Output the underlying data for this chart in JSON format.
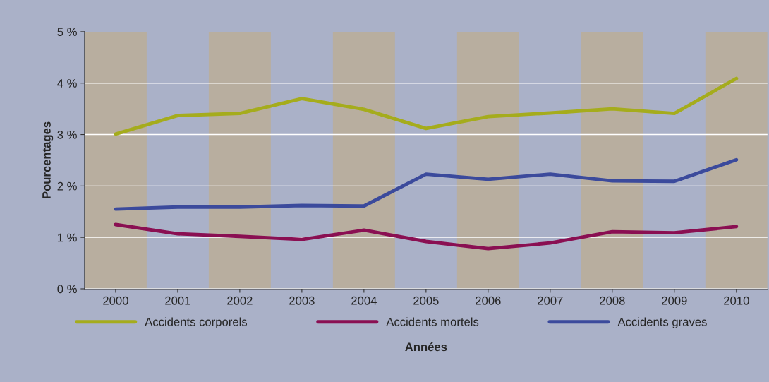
{
  "chart_data": {
    "type": "line",
    "xlabel": "Années",
    "ylabel": "Pourcentages",
    "x": [
      2000,
      2001,
      2002,
      2003,
      2004,
      2005,
      2006,
      2007,
      2008,
      2009,
      2010
    ],
    "xlim": [
      1999.5,
      2010.5
    ],
    "xticks": [
      2000,
      2001,
      2002,
      2003,
      2004,
      2005,
      2006,
      2007,
      2008,
      2009,
      2010
    ],
    "ylim": [
      0,
      5
    ],
    "yticks": [
      {
        "value": 0,
        "label": "0 %"
      },
      {
        "value": 1,
        "label": "1 %"
      },
      {
        "value": 2,
        "label": "2 %"
      },
      {
        "value": 3,
        "label": "3 %"
      },
      {
        "value": 4,
        "label": "4 %"
      },
      {
        "value": 5,
        "label": "5 %"
      }
    ],
    "series": [
      {
        "name": "Accidents corporels",
        "color": "#a5ac1c",
        "values": [
          3.01,
          3.37,
          3.41,
          3.7,
          3.49,
          3.12,
          3.35,
          3.42,
          3.5,
          3.41,
          4.09
        ]
      },
      {
        "name": "Accidents mortels",
        "color": "#8a0f52",
        "values": [
          1.25,
          1.07,
          1.02,
          0.96,
          1.14,
          0.92,
          0.78,
          0.89,
          1.11,
          1.09,
          1.21
        ]
      },
      {
        "name": "Accidents graves",
        "color": "#3b4a9c",
        "values": [
          1.55,
          1.59,
          1.59,
          1.62,
          1.61,
          2.23,
          2.13,
          2.23,
          2.1,
          2.09,
          2.51
        ]
      }
    ],
    "bands": [
      {
        "axis": "x",
        "from": 1999.5,
        "to": 2000.5,
        "color": "#b8ae9f"
      },
      {
        "axis": "x",
        "from": 2001.5,
        "to": 2002.5,
        "color": "#b8ae9f"
      },
      {
        "axis": "x",
        "from": 2003.5,
        "to": 2004.5,
        "color": "#b8ae9f"
      },
      {
        "axis": "x",
        "from": 2005.5,
        "to": 2006.5,
        "color": "#b8ae9f"
      },
      {
        "axis": "x",
        "from": 2007.5,
        "to": 2008.5,
        "color": "#b8ae9f"
      },
      {
        "axis": "x",
        "from": 2009.5,
        "to": 2010.5,
        "color": "#b8ae9f"
      }
    ],
    "grid": "y",
    "legend": "bottom",
    "line_style": "solid",
    "marker": "none"
  }
}
